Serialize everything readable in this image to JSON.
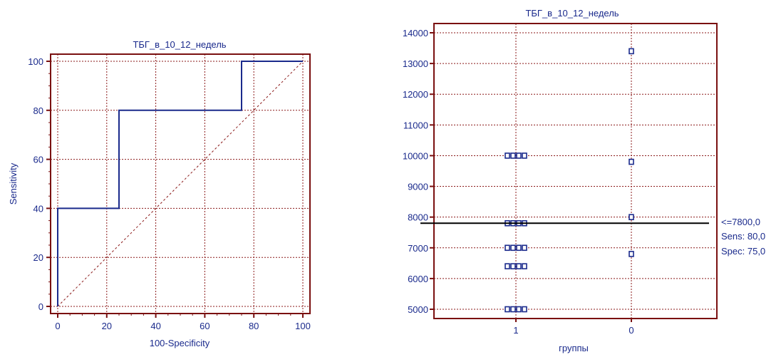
{
  "chart_data": [
    {
      "type": "line",
      "title": "ТБГ_в_10_12_недель",
      "xlabel": "100-Specificity",
      "ylabel": "Sensitivity",
      "xlim": [
        0,
        100
      ],
      "ylim": [
        0,
        100
      ],
      "x_ticks": [
        0,
        20,
        40,
        60,
        80,
        100
      ],
      "y_ticks": [
        0,
        20,
        40,
        60,
        80,
        100
      ],
      "grid": true,
      "series": [
        {
          "x": [
            0,
            0,
            25,
            25,
            75,
            75,
            100
          ],
          "y": [
            0,
            40,
            40,
            80,
            80,
            100,
            100
          ]
        },
        {
          "style": "dashed",
          "x": [
            0,
            100
          ],
          "y": [
            0,
            100
          ]
        }
      ]
    },
    {
      "type": "scatter",
      "title": "ТБГ_в_10_12_недель",
      "xlabel": "группы",
      "ylabel": "",
      "categories": [
        "1",
        "0"
      ],
      "ylim": [
        4800,
        14000
      ],
      "y_ticks": [
        5000,
        6000,
        7000,
        8000,
        9000,
        10000,
        11000,
        12000,
        13000,
        14000
      ],
      "grid": true,
      "points": [
        {
          "category": "1",
          "values": [
            10000,
            10000,
            10000,
            10000,
            7800,
            7800,
            7800,
            7800,
            7000,
            7000,
            7000,
            7000,
            6400,
            6400,
            6400,
            6400,
            5000,
            5000,
            5000,
            5000
          ]
        },
        {
          "category": "0",
          "values": [
            13400,
            9800,
            8000,
            6800
          ]
        }
      ],
      "cutoff": 7800,
      "annotation": [
        "<=7800,0",
        "Sens: 80,0",
        "Spec: 75,0"
      ]
    }
  ],
  "colors": {
    "frame": "#7a1010",
    "grid": "#8b1a1a",
    "curve": "#1a2a8c",
    "text": "#1a2a8c",
    "cutoff_line": "#000000",
    "marker": "#1a2a8c"
  }
}
